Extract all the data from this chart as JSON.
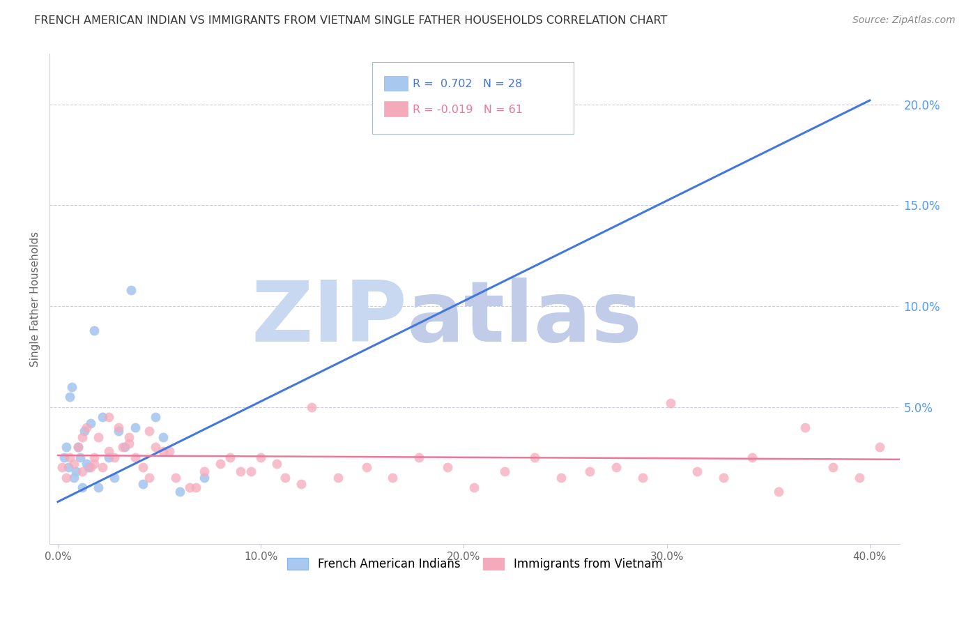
{
  "title": "FRENCH AMERICAN INDIAN VS IMMIGRANTS FROM VIETNAM SINGLE FATHER HOUSEHOLDS CORRELATION CHART",
  "source": "Source: ZipAtlas.com",
  "ylabel": "Single Father Households",
  "xlabel_ticks": [
    "0.0%",
    "10.0%",
    "20.0%",
    "30.0%",
    "40.0%"
  ],
  "xlabel_vals": [
    0.0,
    0.1,
    0.2,
    0.3,
    0.4
  ],
  "ylabel_right_ticks": [
    "20.0%",
    "15.0%",
    "10.0%",
    "5.0%"
  ],
  "ylabel_right_vals": [
    0.2,
    0.15,
    0.1,
    0.05
  ],
  "ylim": [
    -0.018,
    0.225
  ],
  "xlim": [
    -0.004,
    0.415
  ],
  "blue_R": 0.702,
  "blue_N": 28,
  "pink_R": -0.019,
  "pink_N": 61,
  "blue_label": "French American Indians",
  "pink_label": "Immigrants from Vietnam",
  "blue_color": "#A8C8F0",
  "pink_color": "#F5AABB",
  "blue_line_color": "#4477DD",
  "pink_line_color": "#EE7799",
  "watermark_zip": "ZIP",
  "watermark_atlas": "atlas",
  "watermark_color_zip": "#C8D8F0",
  "watermark_color_atlas": "#C0CCE8",
  "background_color": "#FFFFFF",
  "blue_x": [
    0.003,
    0.004,
    0.005,
    0.006,
    0.007,
    0.008,
    0.009,
    0.01,
    0.011,
    0.012,
    0.013,
    0.014,
    0.015,
    0.016,
    0.018,
    0.02,
    0.022,
    0.025,
    0.028,
    0.03,
    0.033,
    0.036,
    0.038,
    0.042,
    0.048,
    0.052,
    0.06,
    0.072
  ],
  "blue_y": [
    0.025,
    0.03,
    0.02,
    0.055,
    0.06,
    0.015,
    0.018,
    0.03,
    0.025,
    0.01,
    0.038,
    0.022,
    0.02,
    0.042,
    0.088,
    0.01,
    0.045,
    0.025,
    0.015,
    0.038,
    0.03,
    0.108,
    0.04,
    0.012,
    0.045,
    0.035,
    0.008,
    0.015
  ],
  "pink_x": [
    0.002,
    0.004,
    0.006,
    0.008,
    0.01,
    0.012,
    0.014,
    0.016,
    0.018,
    0.02,
    0.022,
    0.025,
    0.028,
    0.03,
    0.032,
    0.035,
    0.038,
    0.042,
    0.045,
    0.048,
    0.052,
    0.058,
    0.065,
    0.072,
    0.08,
    0.09,
    0.1,
    0.112,
    0.125,
    0.138,
    0.152,
    0.165,
    0.178,
    0.192,
    0.205,
    0.22,
    0.235,
    0.248,
    0.262,
    0.275,
    0.288,
    0.302,
    0.315,
    0.328,
    0.342,
    0.355,
    0.368,
    0.382,
    0.395,
    0.405,
    0.012,
    0.018,
    0.025,
    0.035,
    0.045,
    0.055,
    0.068,
    0.085,
    0.095,
    0.108,
    0.12
  ],
  "pink_y": [
    0.02,
    0.015,
    0.025,
    0.022,
    0.03,
    0.018,
    0.04,
    0.02,
    0.025,
    0.035,
    0.02,
    0.028,
    0.025,
    0.04,
    0.03,
    0.032,
    0.025,
    0.02,
    0.015,
    0.03,
    0.028,
    0.015,
    0.01,
    0.018,
    0.022,
    0.018,
    0.025,
    0.015,
    0.05,
    0.015,
    0.02,
    0.015,
    0.025,
    0.02,
    0.01,
    0.018,
    0.025,
    0.015,
    0.018,
    0.02,
    0.015,
    0.052,
    0.018,
    0.015,
    0.025,
    0.008,
    0.04,
    0.02,
    0.015,
    0.03,
    0.035,
    0.022,
    0.045,
    0.035,
    0.038,
    0.028,
    0.01,
    0.025,
    0.018,
    0.022,
    0.012
  ],
  "blue_trend_x": [
    0.0,
    0.4
  ],
  "blue_trend_y": [
    0.003,
    0.202
  ],
  "pink_trend_x": [
    0.0,
    0.415
  ],
  "pink_trend_y": [
    0.026,
    0.024
  ]
}
